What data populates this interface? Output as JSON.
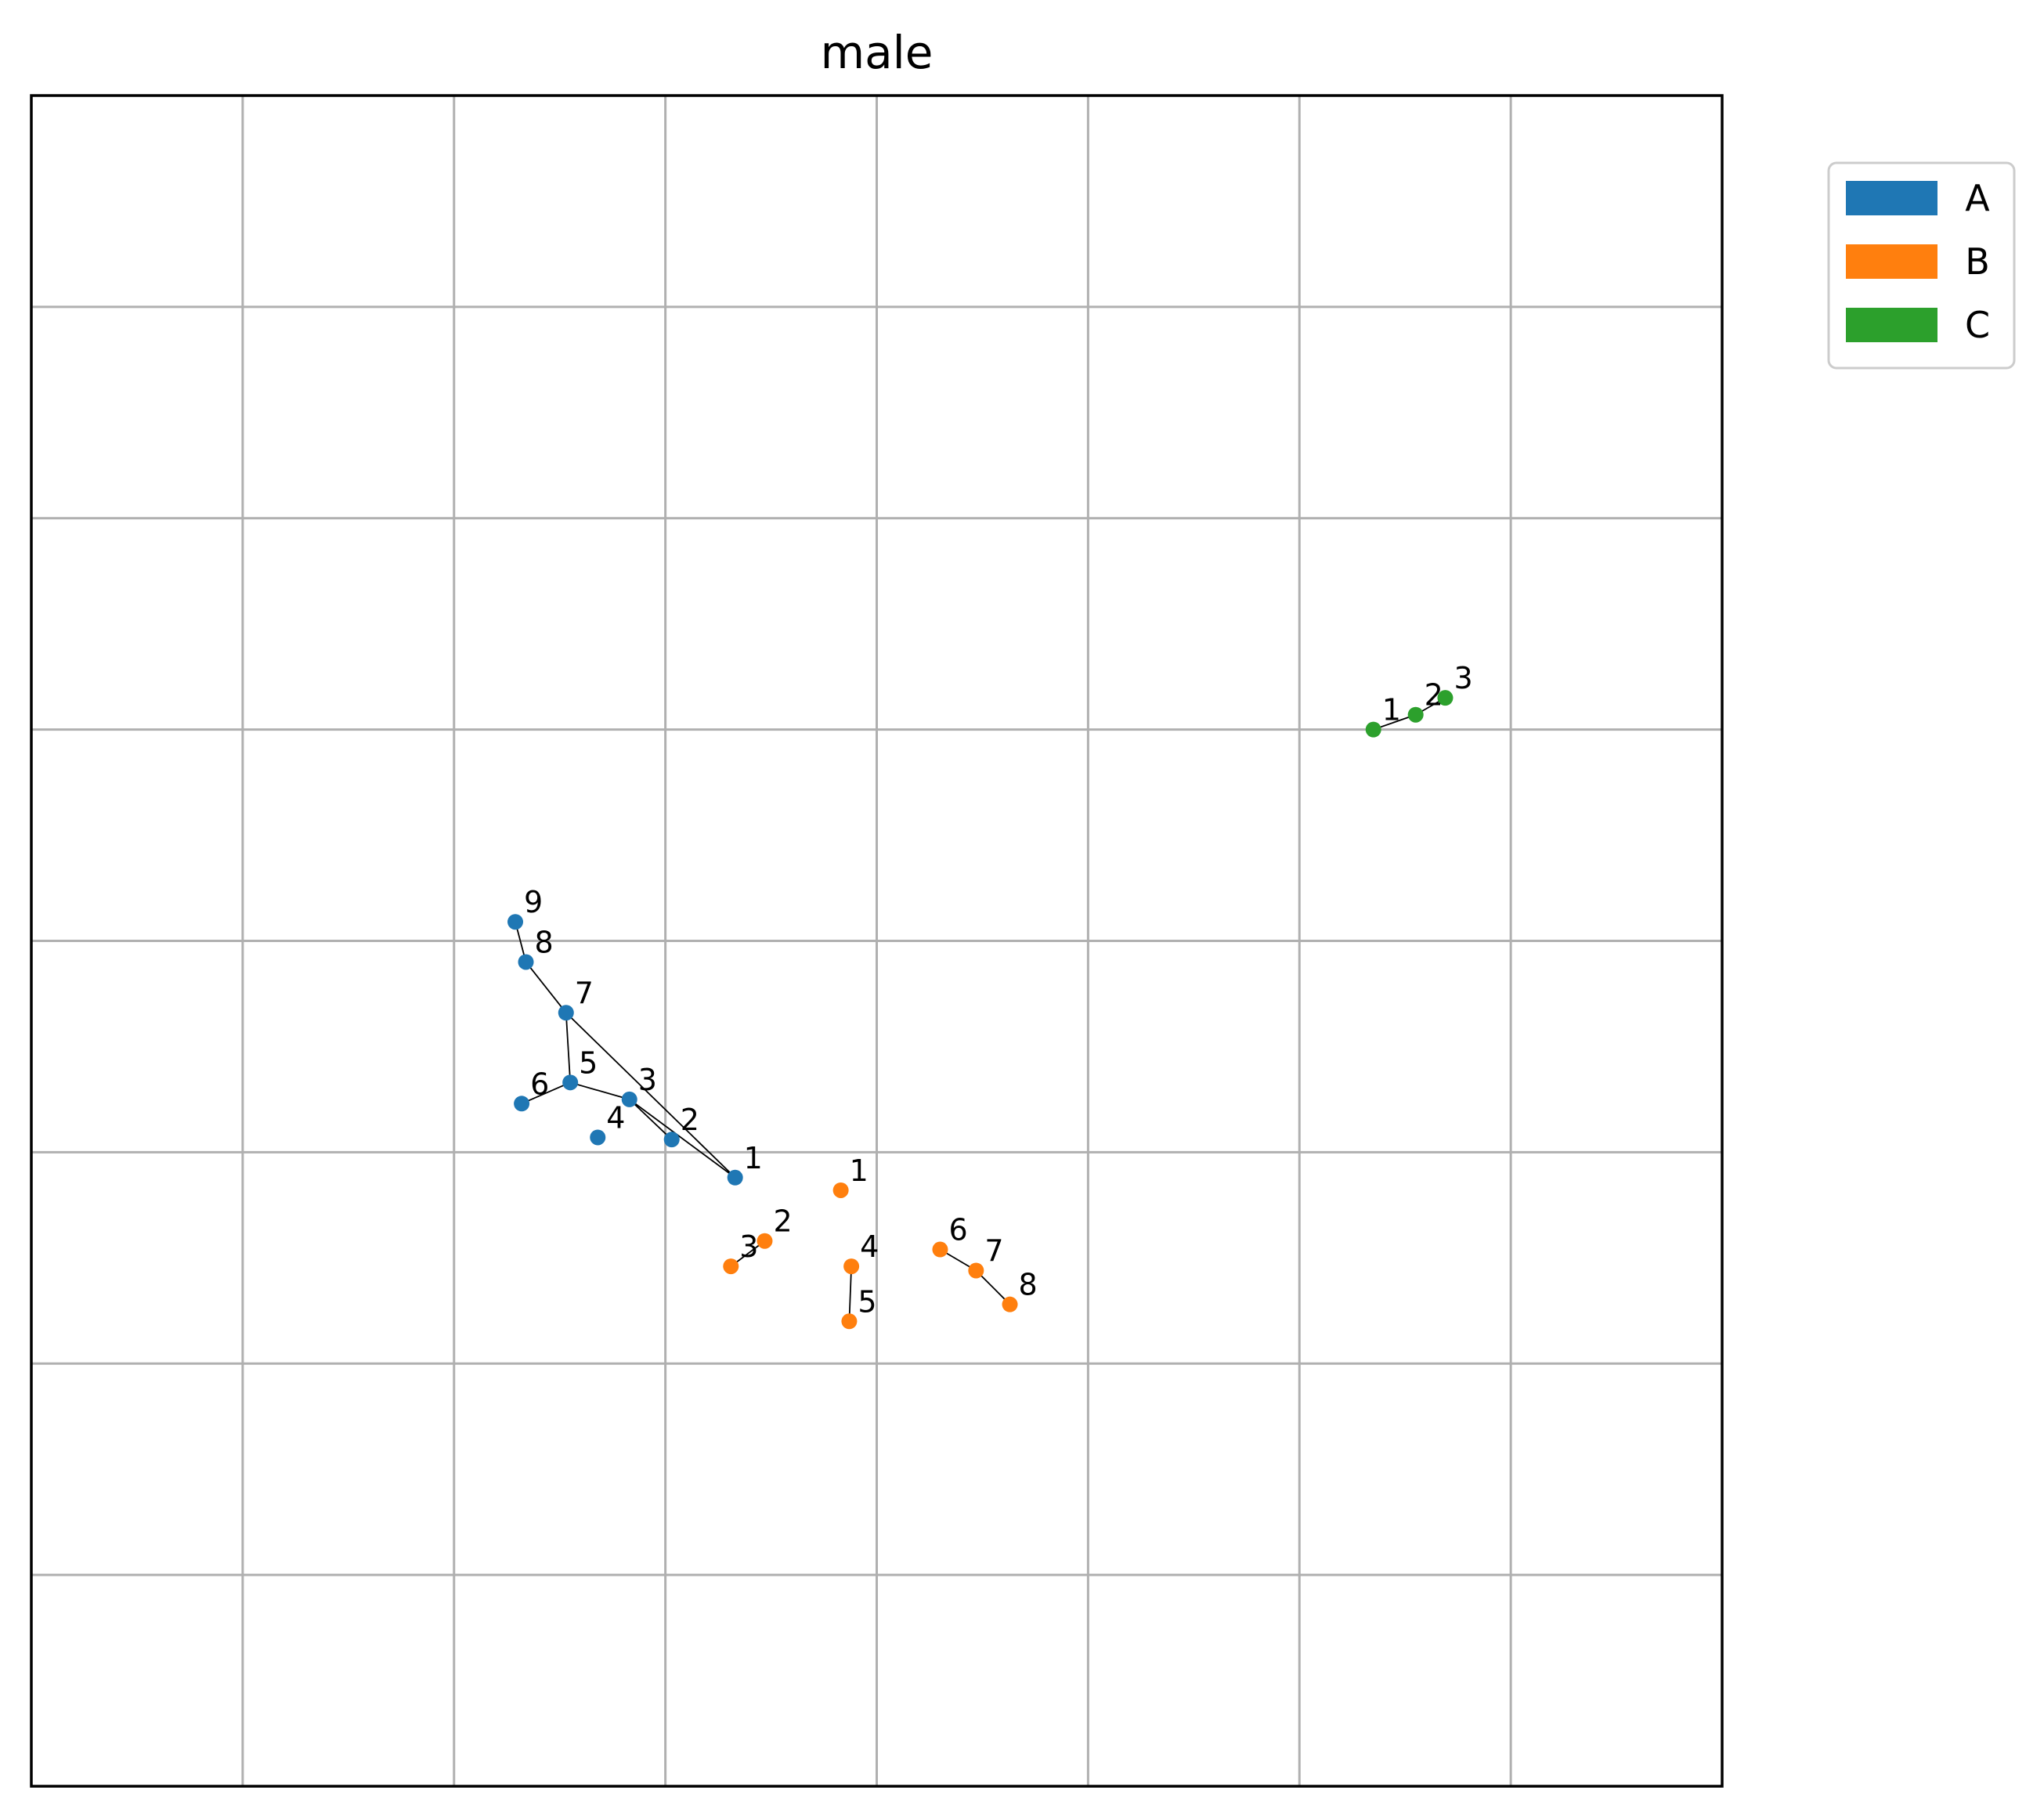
{
  "chart_data": {
    "type": "scatter",
    "title": "male",
    "xlabel": "",
    "ylabel": "",
    "xlim": [
      0,
      8
    ],
    "ylim": [
      0,
      8
    ],
    "grid": true,
    "ticks_visible": false,
    "legend": {
      "placement": "outside-top-right",
      "entries": [
        "A",
        "B",
        "C"
      ]
    },
    "series": [
      {
        "name": "A",
        "color": "#1f77b4",
        "points": [
          {
            "label": "1",
            "x": 3.33,
            "y": 2.88
          },
          {
            "label": "2",
            "x": 3.03,
            "y": 3.06
          },
          {
            "label": "3",
            "x": 2.83,
            "y": 3.25
          },
          {
            "label": "4",
            "x": 2.68,
            "y": 3.07
          },
          {
            "label": "5",
            "x": 2.55,
            "y": 3.33
          },
          {
            "label": "6",
            "x": 2.32,
            "y": 3.23
          },
          {
            "label": "7",
            "x": 2.53,
            "y": 3.66
          },
          {
            "label": "8",
            "x": 2.34,
            "y": 3.9
          },
          {
            "label": "9",
            "x": 2.29,
            "y": 4.09
          }
        ],
        "connections": [
          [
            "1",
            "3"
          ],
          [
            "1",
            "7"
          ],
          [
            "2",
            "3"
          ],
          [
            "3",
            "5"
          ],
          [
            "5",
            "6"
          ],
          [
            "5",
            "7"
          ],
          [
            "7",
            "8"
          ],
          [
            "8",
            "9"
          ]
        ]
      },
      {
        "name": "B",
        "color": "#ff7f0e",
        "points": [
          {
            "label": "1",
            "x": 3.83,
            "y": 2.82
          },
          {
            "label": "2",
            "x": 3.47,
            "y": 2.58
          },
          {
            "label": "3",
            "x": 3.31,
            "y": 2.46
          },
          {
            "label": "4",
            "x": 3.88,
            "y": 2.46
          },
          {
            "label": "5",
            "x": 3.87,
            "y": 2.2
          },
          {
            "label": "6",
            "x": 4.3,
            "y": 2.54
          },
          {
            "label": "7",
            "x": 4.47,
            "y": 2.44
          },
          {
            "label": "8",
            "x": 4.63,
            "y": 2.28
          }
        ],
        "connections": [
          [
            "2",
            "3"
          ],
          [
            "4",
            "5"
          ],
          [
            "6",
            "7"
          ],
          [
            "7",
            "8"
          ]
        ]
      },
      {
        "name": "C",
        "color": "#2ca02c",
        "points": [
          {
            "label": "1",
            "x": 6.35,
            "y": 5.0
          },
          {
            "label": "2",
            "x": 6.55,
            "y": 5.07
          },
          {
            "label": "3",
            "x": 6.69,
            "y": 5.15
          }
        ],
        "connections": [
          [
            "1",
            "2"
          ],
          [
            "2",
            "3"
          ]
        ]
      }
    ]
  }
}
